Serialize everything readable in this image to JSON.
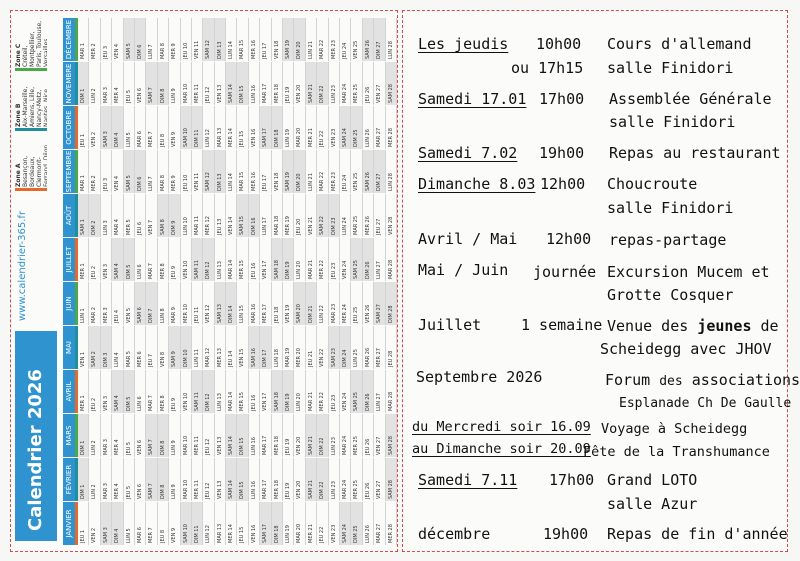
{
  "calendar": {
    "title": "Calendrier 2026",
    "website": "www.calendrier-365.fr",
    "zones": [
      {
        "label": "Zone A",
        "text": "Besançon, Bordeaux, Clermont-Ferrand, Dijon, Grenoble, Limoges, Lyon, Poitiers",
        "color": "#e46a2b"
      },
      {
        "label": "Zone B",
        "text": "Aix-Marseille, Amiens, Lille, Nancy-Metz, Nantes, Nice, Normandie, Orléans-Tours, Reims, Rennes, Strasbourg",
        "color": "#1f8f9b"
      },
      {
        "label": "Zone C",
        "text": "Créteil, Montpellier, Paris, Toulouse, Versailles",
        "color": "#4aa84a"
      }
    ],
    "months": [
      "JANVIER",
      "FÉVRIER",
      "MARS",
      "AVRIL",
      "MAI",
      "JUIN",
      "JUILLET",
      "AOÛT",
      "SEPTEMBRE",
      "OCTOBRE",
      "NOVEMBRE",
      "DÉCEMBRE"
    ],
    "first_weekday": [
      3,
      6,
      6,
      2,
      4,
      0,
      2,
      5,
      1,
      3,
      6,
      1
    ],
    "days_in_month": [
      31,
      28,
      31,
      30,
      31,
      30,
      31,
      31,
      30,
      31,
      30,
      31
    ],
    "weekday_abbr": [
      "LUN",
      "MAR",
      "MER",
      "JEU",
      "VEN",
      "SAM",
      "DIM"
    ]
  },
  "events": [
    {
      "date": "Les jeudis",
      "time": "10h00",
      "time2": "ou 17h15",
      "desc": "Cours d'allemand",
      "desc2": "salle Finidori"
    },
    {
      "date": "Samedi 17.01",
      "time": "17h00",
      "desc": "Assemblée Générale",
      "desc2": "salle Finidori"
    },
    {
      "date": "Samedi 7.02",
      "time": "19h00",
      "desc": "Repas au restaurant"
    },
    {
      "date": "Dimanche 8.03",
      "time": "12h00",
      "desc": "Choucroute",
      "desc2": "salle Finidori"
    },
    {
      "date": "Avril / Mai",
      "time": "12h00",
      "desc": "repas-partage"
    },
    {
      "date": "Mai / Juin",
      "time": "journée",
      "desc": "Excursion Mucem et",
      "desc2": "Grotte Cosquer"
    },
    {
      "date": "Juillet",
      "time": "1 semaine",
      "desc_a": "Venue des ",
      "desc_b": "jeunes",
      "desc_c": " de",
      "desc2": "Scheidegg avec JHOV"
    },
    {
      "date": "Septembre 2026",
      "desc_a": "Forum",
      "desc_b": "des",
      "desc_c": "associations",
      "desc2": "Esplanade Ch De Gaulle"
    },
    {
      "date": "du Mercredi soir 16.09",
      "date2": "au Dimanche soir 20.09",
      "desc": "Voyage à Scheidegg",
      "desc2": "Fête de la Transhumance"
    },
    {
      "date": "Samedi 7.11",
      "time": "17h00",
      "desc": "Grand LOTO",
      "desc2": "salle Azur"
    },
    {
      "date": "décembre",
      "time": "19h00",
      "desc": "Repas de fin d'année"
    }
  ]
}
